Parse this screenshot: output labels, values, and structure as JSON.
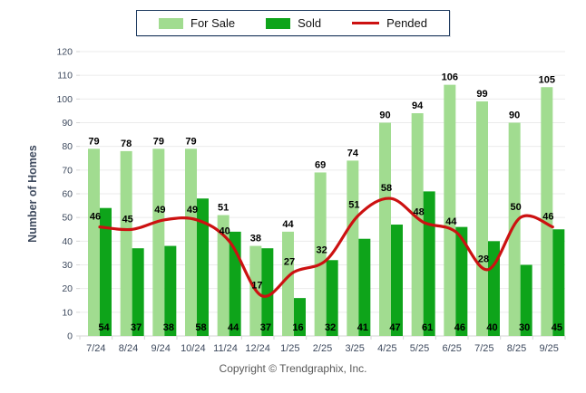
{
  "legend": {
    "items": [
      {
        "label": "For Sale",
        "color": "#a1dc90",
        "swatch": "box"
      },
      {
        "label": "Sold",
        "color": "#0ea41a",
        "swatch": "box"
      },
      {
        "label": "Pended",
        "color": "#cc1111",
        "swatch": "line"
      }
    ]
  },
  "footer": {
    "copyright": "Copyright © Trendgraphix, Inc."
  },
  "chart_data": {
    "type": "bar",
    "title": "",
    "xlabel": "",
    "ylabel": "Number of Homes",
    "ylim": [
      0,
      120
    ],
    "ytick_step": 10,
    "grid": true,
    "legend_position": "top-center",
    "categories": [
      "7/24",
      "8/24",
      "9/24",
      "10/24",
      "11/24",
      "12/24",
      "1/25",
      "2/25",
      "3/25",
      "4/25",
      "5/25",
      "6/25",
      "7/25",
      "8/25",
      "9/25"
    ],
    "series": [
      {
        "name": "For Sale",
        "type": "bar",
        "color": "#a1dc90",
        "values": [
          79,
          78,
          79,
          79,
          51,
          38,
          44,
          69,
          74,
          90,
          94,
          106,
          99,
          90,
          105
        ]
      },
      {
        "name": "Sold",
        "type": "bar",
        "color": "#0ea41a",
        "values": [
          54,
          37,
          38,
          58,
          44,
          37,
          16,
          32,
          41,
          47,
          61,
          46,
          40,
          30,
          45
        ]
      },
      {
        "name": "Pended",
        "type": "line",
        "color": "#cc1111",
        "values": [
          46,
          45,
          49,
          49,
          40,
          17,
          27,
          32,
          51,
          58,
          48,
          44,
          28,
          50,
          46
        ]
      }
    ],
    "style": {
      "grid_color": "#ebebeb",
      "axis_color": "#d6d6d6",
      "axis_text_color": "#3e4a5e",
      "value_label_color": "#000000"
    }
  }
}
